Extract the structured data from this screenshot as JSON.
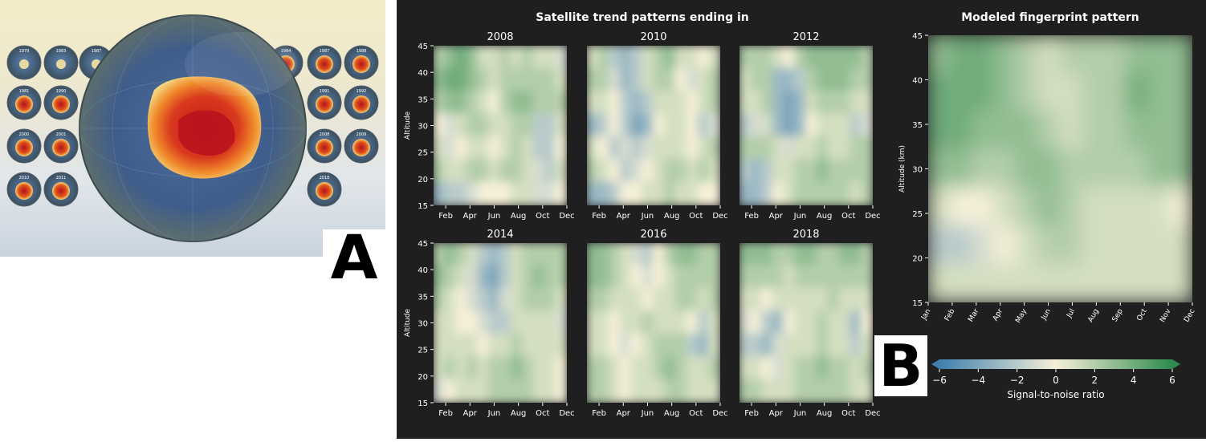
{
  "panel_a": {
    "label": "A",
    "thumbnail_years": [
      "1979",
      "1983",
      "1987",
      "1984",
      "1987",
      "1988",
      "1981",
      "1990",
      "1991",
      "1992",
      "2000",
      "2001",
      "2008",
      "2009",
      "2010",
      "2011",
      "2018"
    ]
  },
  "panel_b": {
    "label": "B"
  },
  "chart_data": [
    {
      "type": "heatmap",
      "title": "Satellite trend patterns ending in",
      "subplot_titles": [
        "2008",
        "2010",
        "2012",
        "2014",
        "2016",
        "2018"
      ],
      "xlabel": "",
      "ylabel": "Altitude",
      "x_ticks": [
        "Feb",
        "Apr",
        "Jun",
        "Aug",
        "Oct",
        "Dec"
      ],
      "y_ticks": [
        15,
        20,
        25,
        30,
        35,
        40,
        45
      ],
      "ylim": [
        15,
        45
      ],
      "months": [
        "Jan",
        "Feb",
        "Mar",
        "Apr",
        "May",
        "Jun",
        "Jul",
        "Aug",
        "Sep",
        "Oct",
        "Nov",
        "Dec"
      ],
      "altitudes": [
        45,
        40,
        35,
        30,
        25,
        20,
        15
      ],
      "panels": [
        {
          "name": "2008",
          "values": [
            [
              2,
              3,
              4,
              3,
              1,
              1,
              2,
              1,
              2,
              1,
              1,
              -1
            ],
            [
              3,
              4,
              4,
              3,
              2,
              1,
              2,
              2,
              2,
              2,
              2,
              1
            ],
            [
              2,
              3,
              3,
              2,
              1,
              0,
              2,
              3,
              3,
              2,
              2,
              2
            ],
            [
              0,
              -1,
              1,
              2,
              2,
              1,
              1,
              2,
              2,
              -2,
              -2,
              1
            ],
            [
              1,
              -1,
              0,
              1,
              1,
              0,
              1,
              2,
              1,
              -2,
              -2,
              0
            ],
            [
              2,
              1,
              1,
              2,
              2,
              1,
              2,
              2,
              1,
              -1,
              -2,
              1
            ],
            [
              -3,
              -2,
              -2,
              -1,
              0,
              0,
              0,
              1,
              1,
              -1,
              -1,
              0
            ]
          ]
        },
        {
          "name": "2010",
          "values": [
            [
              1,
              2,
              -2,
              -3,
              -2,
              1,
              2,
              3,
              1,
              1,
              0,
              1
            ],
            [
              2,
              2,
              -1,
              -3,
              -2,
              1,
              2,
              2,
              0,
              -1,
              1,
              2
            ],
            [
              1,
              1,
              0,
              -2,
              -3,
              -2,
              1,
              1,
              1,
              0,
              1,
              2
            ],
            [
              -3,
              -2,
              0,
              -2,
              -4,
              -3,
              0,
              1,
              1,
              0,
              -2,
              -1
            ],
            [
              1,
              0,
              -2,
              -1,
              -2,
              -1,
              1,
              1,
              1,
              0,
              1,
              2
            ],
            [
              2,
              1,
              0,
              -2,
              -1,
              0,
              1,
              2,
              2,
              1,
              2,
              1
            ],
            [
              -3,
              -3,
              -2,
              0,
              0,
              1,
              1,
              2,
              1,
              1,
              0,
              0
            ]
          ]
        },
        {
          "name": "2012",
          "values": [
            [
              2,
              2,
              2,
              1,
              0,
              2,
              3,
              3,
              3,
              3,
              3,
              2
            ],
            [
              1,
              2,
              2,
              -3,
              -3,
              -2,
              2,
              3,
              3,
              3,
              2,
              2
            ],
            [
              1,
              1,
              2,
              -3,
              -4,
              -3,
              1,
              2,
              2,
              2,
              1,
              1
            ],
            [
              -2,
              -1,
              1,
              -3,
              -4,
              -3,
              0,
              1,
              1,
              1,
              -2,
              -1
            ],
            [
              2,
              2,
              2,
              1,
              -1,
              1,
              1,
              2,
              1,
              1,
              2,
              2
            ],
            [
              -2,
              -3,
              -2,
              1,
              1,
              2,
              2,
              3,
              2,
              2,
              2,
              2
            ],
            [
              -3,
              -3,
              -2,
              0,
              1,
              2,
              2,
              2,
              2,
              2,
              1,
              2
            ]
          ]
        },
        {
          "name": "2014",
          "values": [
            [
              2,
              3,
              2,
              1,
              -2,
              -3,
              -2,
              1,
              2,
              2,
              2,
              2
            ],
            [
              3,
              2,
              1,
              -1,
              -3,
              -4,
              -2,
              1,
              2,
              3,
              2,
              2
            ],
            [
              2,
              1,
              0,
              -1,
              -2,
              -3,
              -1,
              1,
              2,
              2,
              2,
              1
            ],
            [
              1,
              1,
              0,
              0,
              -1,
              -2,
              -2,
              1,
              1,
              1,
              1,
              -1
            ],
            [
              1,
              1,
              1,
              1,
              0,
              1,
              1,
              2,
              1,
              1,
              1,
              1
            ],
            [
              1,
              2,
              1,
              2,
              1,
              2,
              2,
              3,
              2,
              1,
              1,
              0
            ],
            [
              -1,
              0,
              1,
              1,
              1,
              2,
              2,
              2,
              2,
              1,
              1,
              0
            ]
          ]
        },
        {
          "name": "2016",
          "values": [
            [
              3,
              3,
              2,
              1,
              -1,
              -2,
              0,
              2,
              3,
              3,
              2,
              2
            ],
            [
              3,
              3,
              2,
              1,
              0,
              -1,
              0,
              1,
              2,
              2,
              2,
              2
            ],
            [
              2,
              2,
              1,
              1,
              1,
              0,
              1,
              1,
              2,
              2,
              1,
              2
            ],
            [
              1,
              1,
              0,
              1,
              1,
              2,
              1,
              1,
              1,
              0,
              -2,
              1
            ],
            [
              1,
              1,
              0,
              -1,
              0,
              1,
              2,
              2,
              2,
              -2,
              -3,
              1
            ],
            [
              2,
              2,
              1,
              0,
              1,
              1,
              2,
              3,
              2,
              1,
              1,
              2
            ],
            [
              2,
              2,
              1,
              0,
              1,
              1,
              1,
              2,
              2,
              1,
              1,
              1
            ]
          ]
        },
        {
          "name": "2018",
          "values": [
            [
              3,
              3,
              3,
              2,
              2,
              3,
              3,
              2,
              2,
              3,
              3,
              2
            ],
            [
              2,
              2,
              2,
              2,
              1,
              2,
              2,
              2,
              2,
              2,
              2,
              2
            ],
            [
              1,
              1,
              0,
              1,
              1,
              1,
              1,
              1,
              2,
              1,
              1,
              1
            ],
            [
              -1,
              0,
              -2,
              -3,
              0,
              1,
              1,
              2,
              1,
              1,
              -3,
              0
            ],
            [
              -2,
              -2,
              -3,
              -1,
              1,
              1,
              1,
              2,
              1,
              1,
              -2,
              1
            ],
            [
              1,
              1,
              0,
              -1,
              1,
              2,
              2,
              3,
              2,
              2,
              1,
              2
            ],
            [
              2,
              2,
              1,
              1,
              1,
              2,
              2,
              2,
              2,
              2,
              1,
              1
            ]
          ]
        }
      ]
    },
    {
      "type": "heatmap",
      "title": "Modeled fingerprint pattern",
      "xlabel": "",
      "ylabel": "Altitude (km)",
      "x_ticks": [
        "Jan",
        "Feb",
        "Mar",
        "Apr",
        "May",
        "Jun",
        "Jul",
        "Aug",
        "Sep",
        "Oct",
        "Nov",
        "Dec"
      ],
      "y_ticks": [
        15,
        20,
        25,
        30,
        35,
        40,
        45
      ],
      "ylim": [
        15,
        45
      ],
      "altitudes": [
        45,
        40,
        35,
        30,
        25,
        20,
        15
      ],
      "values": [
        [
          3,
          4,
          4,
          3,
          2,
          1,
          2,
          2,
          2,
          3,
          3,
          3
        ],
        [
          4,
          4,
          4,
          3,
          2,
          1,
          1,
          2,
          2,
          4,
          3,
          3
        ],
        [
          4,
          4,
          3,
          3,
          3,
          2,
          1,
          2,
          2,
          3,
          3,
          3
        ],
        [
          3,
          3,
          2,
          2,
          3,
          3,
          2,
          2,
          2,
          2,
          3,
          3
        ],
        [
          1,
          0,
          0,
          1,
          2,
          3,
          2,
          1,
          1,
          1,
          1,
          0
        ],
        [
          -2,
          -2,
          -1,
          0,
          1,
          2,
          2,
          1,
          1,
          1,
          1,
          1
        ],
        [
          1,
          1,
          1,
          1,
          1,
          1,
          1,
          1,
          1,
          1,
          1,
          1
        ]
      ]
    },
    {
      "type": "colorbar",
      "label": "Signal-to-noise ratio",
      "ticks": [
        -6,
        -4,
        -2,
        0,
        2,
        4,
        6
      ],
      "range": [
        -6,
        6
      ],
      "colors": {
        "neg": "#3f7fae",
        "mid": "#f5f0d8",
        "pos": "#2e8a4e"
      }
    }
  ]
}
